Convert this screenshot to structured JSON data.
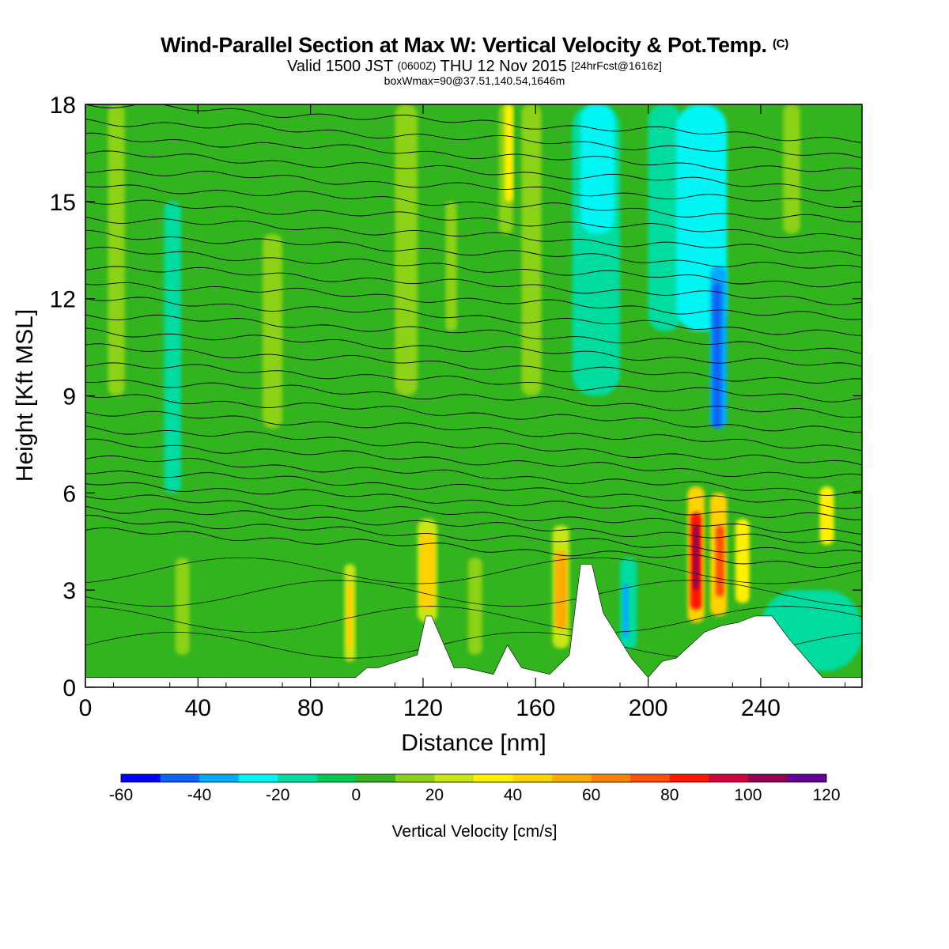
{
  "header": {
    "title": "Wind-Parallel Section at Max W: Vertical Velocity & Pot.Temp.",
    "copyright_mark": "(C)",
    "valid_prefix": "Valid 1500 JST",
    "valid_utc": "(0600Z)",
    "valid_date": "THU 12 Nov 2015",
    "forecast": "[24hrFcst@1616z]",
    "box_info": "boxWmax=90@37.51,140.54,1646m"
  },
  "chart_data": {
    "type": "heatmap",
    "xlabel": "Distance [nm]",
    "ylabel": "Height [Kft MSL]",
    "xlim": [
      0,
      276
    ],
    "ylim": [
      0,
      18
    ],
    "x_ticks": [
      0,
      40,
      80,
      120,
      160,
      200,
      240
    ],
    "y_ticks": [
      0,
      3,
      6,
      9,
      12,
      15,
      18
    ],
    "colorbar": {
      "title": "Vertical Velocity [cm/s]",
      "range": [
        -60,
        120
      ],
      "tick_values": [
        -60,
        -40,
        -20,
        0,
        20,
        40,
        60,
        80,
        100,
        120
      ],
      "colors": [
        "#0000ff",
        "#0a64f5",
        "#00aaff",
        "#00f5f5",
        "#00dca0",
        "#00c850",
        "#32b41e",
        "#8cd214",
        "#c8e614",
        "#fff000",
        "#ffd200",
        "#ffaa00",
        "#ff8200",
        "#ff5000",
        "#ff1400",
        "#d2003c",
        "#960050",
        "#640096"
      ]
    },
    "velocity_cells": [
      {
        "x": [
          0,
          276
        ],
        "y": [
          0,
          18
        ],
        "w": 0
      },
      {
        "x": [
          8,
          14
        ],
        "y": [
          9,
          18
        ],
        "w": 15
      },
      {
        "x": [
          28,
          34
        ],
        "y": [
          6,
          15
        ],
        "w": -15
      },
      {
        "x": [
          32,
          37
        ],
        "y": [
          1,
          4
        ],
        "w": 15
      },
      {
        "x": [
          63,
          70
        ],
        "y": [
          8,
          14
        ],
        "w": 15
      },
      {
        "x": [
          92,
          96
        ],
        "y": [
          0.8,
          3.8
        ],
        "w": 25
      },
      {
        "x": [
          93,
          95
        ],
        "y": [
          1.2,
          3.2
        ],
        "w": 45
      },
      {
        "x": [
          110,
          118
        ],
        "y": [
          9,
          18
        ],
        "w": 15
      },
      {
        "x": [
          118,
          125
        ],
        "y": [
          2,
          5.2
        ],
        "w": 25
      },
      {
        "x": [
          119,
          124
        ],
        "y": [
          2.4,
          4.8
        ],
        "w": 45
      },
      {
        "x": [
          128,
          132
        ],
        "y": [
          11,
          15
        ],
        "w": 15
      },
      {
        "x": [
          136,
          141
        ],
        "y": [
          1,
          4
        ],
        "w": 15
      },
      {
        "x": [
          147,
          152
        ],
        "y": [
          14,
          18
        ],
        "w": 15
      },
      {
        "x": [
          149,
          152
        ],
        "y": [
          15,
          18
        ],
        "w": 35
      },
      {
        "x": [
          155,
          162
        ],
        "y": [
          9,
          18
        ],
        "w": 15
      },
      {
        "x": [
          166,
          172
        ],
        "y": [
          1.2,
          5
        ],
        "w": 25
      },
      {
        "x": [
          167,
          171
        ],
        "y": [
          1.8,
          4.2
        ],
        "w": 55
      },
      {
        "x": [
          173,
          190
        ],
        "y": [
          9,
          18
        ],
        "w": -15
      },
      {
        "x": [
          176,
          188
        ],
        "y": [
          14,
          18
        ],
        "w": -25
      },
      {
        "x": [
          190,
          196
        ],
        "y": [
          1.2,
          4
        ],
        "w": -15
      },
      {
        "x": [
          191,
          193
        ],
        "y": [
          1.5,
          3.2
        ],
        "w": -35
      },
      {
        "x": [
          200,
          212
        ],
        "y": [
          11,
          18
        ],
        "w": -15
      },
      {
        "x": [
          210,
          228
        ],
        "y": [
          11,
          18
        ],
        "w": -25
      },
      {
        "x": [
          222,
          228
        ],
        "y": [
          8,
          13
        ],
        "w": -35
      },
      {
        "x": [
          223,
          226
        ],
        "y": [
          8,
          12.5
        ],
        "w": -45
      },
      {
        "x": [
          214,
          220
        ],
        "y": [
          2,
          6.2
        ],
        "w": 45
      },
      {
        "x": [
          215,
          219
        ],
        "y": [
          2.4,
          5.4
        ],
        "w": 85
      },
      {
        "x": [
          216,
          218
        ],
        "y": [
          3,
          5
        ],
        "w": 105
      },
      {
        "x": [
          222,
          228
        ],
        "y": [
          2.2,
          6
        ],
        "w": 45
      },
      {
        "x": [
          224,
          227
        ],
        "y": [
          2.8,
          5
        ],
        "w": 75
      },
      {
        "x": [
          231,
          236
        ],
        "y": [
          2.6,
          5.2
        ],
        "w": 35
      },
      {
        "x": [
          261,
          266
        ],
        "y": [
          4.4,
          6.2
        ],
        "w": 35
      },
      {
        "x": [
          248,
          254
        ],
        "y": [
          14,
          18
        ],
        "w": 15
      },
      {
        "x": [
          240,
          276
        ],
        "y": [
          0.5,
          3
        ],
        "w": -15
      }
    ],
    "terrain": {
      "x": [
        0,
        96,
        100,
        104,
        118,
        121,
        123,
        126,
        131,
        135,
        145,
        150,
        155,
        165,
        172,
        176,
        180,
        184,
        194,
        200,
        205,
        210,
        220,
        226,
        232,
        238,
        244,
        250,
        262,
        276
      ],
      "kft": [
        0.3,
        0.3,
        0.6,
        0.6,
        1.0,
        2.2,
        2.2,
        1.6,
        0.6,
        0.6,
        0.4,
        1.3,
        0.6,
        0.4,
        1.0,
        3.8,
        3.8,
        2.3,
        0.9,
        0.3,
        0.8,
        0.9,
        1.7,
        1.9,
        2.0,
        2.2,
        2.2,
        1.5,
        0.3,
        0.3
      ]
    },
    "theta_contours": {
      "heights_kft_at_x0": [
        4.85,
        5.2,
        5.55,
        5.9,
        6.3,
        6.7,
        7.1,
        7.55,
        8.0,
        8.5,
        9.0,
        9.5,
        10.0,
        10.5,
        11.0,
        11.5,
        12.0,
        12.5,
        13.0,
        13.5,
        14.0,
        14.5,
        15.0,
        15.5,
        16.0,
        16.5,
        17.0,
        17.5,
        18.0
      ],
      "slope_kft_per_nm": -0.004,
      "low_level_heights_kft": [
        1.3,
        2.1,
        2.9,
        3.6
      ]
    }
  }
}
